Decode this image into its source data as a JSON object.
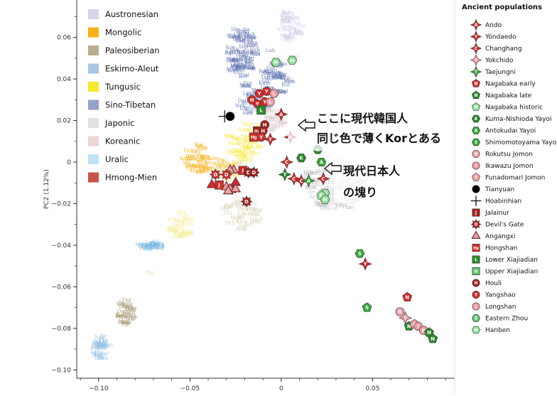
{
  "chart_data": {
    "type": "scatter",
    "title": "",
    "xlabel": "",
    "ylabel": "PC2 (1.12%)",
    "xlim": [
      -0.112,
      0.095
    ],
    "ylim": [
      -0.104,
      0.078
    ],
    "x_ticks": [
      -0.1,
      -0.05,
      0,
      0.05
    ],
    "x_tick_labels": [
      "−0.10",
      "−0.05",
      "0",
      "0.05"
    ],
    "y_ticks": [
      0.06,
      0.04,
      0.02,
      0,
      -0.02,
      -0.04,
      -0.06,
      -0.08,
      -0.1
    ],
    "y_tick_labels": [
      "0.06",
      "0.04",
      "0.02",
      "0",
      "−0.02",
      "−0.04",
      "−0.06",
      "−0.08",
      "−0.10"
    ],
    "grid": false,
    "legend_groups_placement": "top-left",
    "legend_groups": [
      {
        "label": "Austronesian",
        "color": "#d9d4e8"
      },
      {
        "label": "Mongolic",
        "color": "#f5b21a"
      },
      {
        "label": "Paleosiberian",
        "color": "#b8ad8e"
      },
      {
        "label": "Eskimo-Aleut",
        "color": "#a9c6e3"
      },
      {
        "label": "Tungusic",
        "color": "#f6ea2c"
      },
      {
        "label": "Sino-Tibetan",
        "color": "#97a2c9"
      },
      {
        "label": "Japonic",
        "color": "#e3e0e3"
      },
      {
        "label": "Koreanic",
        "color": "#ead6d6"
      },
      {
        "label": "Uralic",
        "color": "#bfe3f4"
      },
      {
        "label": "Hmong-Mien",
        "color": "#c9534a"
      }
    ],
    "legend_ancient_title": "Ancient populations",
    "legend_ancient_placement": "right",
    "legend_ancient": [
      {
        "label": "Ando",
        "letter": "A",
        "shape": "star4",
        "color": "#d42b2b"
      },
      {
        "label": "Yöndaedo",
        "letter": "Y",
        "shape": "star4",
        "color": "#d42b2b"
      },
      {
        "label": "Changhang",
        "letter": "C",
        "shape": "star4",
        "color": "#d42b2b"
      },
      {
        "label": "Yokchido",
        "letter": "Y",
        "shape": "star4",
        "color": "#ef9aa2"
      },
      {
        "label": "Taejungni",
        "letter": "T",
        "shape": "star4",
        "color": "#37a73a"
      },
      {
        "label": "Nagabaka  early",
        "letter": "N",
        "shape": "pentagon",
        "color": "#d42b2b"
      },
      {
        "label": "Nagabaka  late",
        "letter": "N",
        "shape": "pentagon",
        "color": "#2a8a2e"
      },
      {
        "label": "Nagabaka  historic",
        "letter": "N",
        "shape": "pentagon",
        "color": "#8fe39b"
      },
      {
        "label": "Kuma-Nishioda Yayoi",
        "letter": "K",
        "shape": "hexagon",
        "color": "#2a8a2e"
      },
      {
        "label": "Antokudai Yayoi",
        "letter": "A",
        "shape": "hexagon",
        "color": "#37a73a"
      },
      {
        "label": "Shimomotoyama Yayoi",
        "letter": "S",
        "shape": "hexagon",
        "color": "#37a73a"
      },
      {
        "label": "Rokutsu Jomon",
        "letter": "R",
        "shape": "circle",
        "color": "#ef9aa2"
      },
      {
        "label": "Ikawazu Jomon",
        "letter": "I",
        "shape": "circle",
        "color": "#ef9aa2"
      },
      {
        "label": "Funadomari Jomon",
        "letter": "F",
        "shape": "pentagon",
        "color": "#ef9aa2"
      },
      {
        "label": "Tianyuan",
        "letter": "",
        "shape": "dot",
        "color": "#000000"
      },
      {
        "label": "Hoabinhian",
        "letter": "",
        "shape": "plus",
        "color": "#000000"
      },
      {
        "label": "Jalainur",
        "letter": "J",
        "shape": "square",
        "color": "#a81f1f"
      },
      {
        "label": "Devil's Gate",
        "letter": "D",
        "shape": "star8",
        "color": "#a81f1f"
      },
      {
        "label": "Angangxi",
        "letter": "",
        "shape": "triangle",
        "color": "#e6a3a3"
      },
      {
        "label": "Hongshan",
        "letter": "Hg",
        "shape": "square",
        "color": "#d42b2b"
      },
      {
        "label": "Lower Xiajiadian",
        "letter": "L",
        "shape": "square",
        "color": "#2a8a2e"
      },
      {
        "label": "Upper Xiajiadian",
        "letter": "U",
        "shape": "square",
        "color": "#5fc46b"
      },
      {
        "label": "Houli",
        "letter": "H",
        "shape": "circle",
        "color": "#a81f1f"
      },
      {
        "label": "Yangshao",
        "letter": "Y",
        "shape": "circle",
        "color": "#d42b2b"
      },
      {
        "label": "Longshan",
        "letter": "L",
        "shape": "circle",
        "color": "#ef9aa2"
      },
      {
        "label": "Eastern Zhou",
        "letter": "Z",
        "shape": "circle",
        "color": "#5fc46b"
      },
      {
        "label": "Hanben",
        "letter": "H",
        "shape": "hexagon",
        "color": "#8fe39b"
      }
    ],
    "population_labels": [
      {
        "text": "Kdm",
        "x": 0.004,
        "y": 0.071,
        "color": "#c9c3de"
      },
      {
        "text": "Shp",
        "x": -0.025,
        "y": 0.063,
        "color": "#7f8cb9"
      },
      {
        "text": "Lah",
        "x": -0.006,
        "y": 0.053,
        "color": "#7f8cb9"
      },
      {
        "text": "Ami",
        "x": 0.007,
        "y": 0.05,
        "color": "#c9c3de"
      },
      {
        "text": "Kor",
        "x": 0.001,
        "y": 0.018,
        "color": "#d9c5c5"
      },
      {
        "text": "Nvk",
        "x": -0.022,
        "y": -0.033,
        "color": "#c8c0a6"
      },
      {
        "text": "Ykg",
        "x": -0.072,
        "y": -0.054,
        "color": "#e3dcb0"
      },
      {
        "text": "Ite",
        "x": -0.083,
        "y": -0.069,
        "color": "#b8ad8e"
      },
      {
        "text": "Egi",
        "x": -0.102,
        "y": -0.09,
        "color": "#7fa8cf"
      }
    ],
    "clusters": [
      {
        "group": "Austronesian",
        "color": "#cfc9e3",
        "cx": 0.005,
        "cy": 0.065,
        "rx": 0.006,
        "ry": 0.008,
        "n": 30
      },
      {
        "group": "Sino-Tibetan",
        "color": "#5d6fae",
        "cx": -0.022,
        "cy": 0.052,
        "rx": 0.008,
        "ry": 0.012,
        "n": 70
      },
      {
        "group": "Sino-Tibetan",
        "color": "#5d6fae",
        "cx": -0.003,
        "cy": 0.04,
        "rx": 0.008,
        "ry": 0.008,
        "n": 40
      },
      {
        "group": "Sino-Tibetan",
        "color": "#5d6fae",
        "cx": -0.015,
        "cy": 0.03,
        "rx": 0.01,
        "ry": 0.008,
        "n": 30
      },
      {
        "group": "Tungusic",
        "color": "#f6e62c",
        "cx": -0.02,
        "cy": 0.01,
        "rx": 0.01,
        "ry": 0.01,
        "n": 40
      },
      {
        "group": "Mongolic",
        "color": "#f5b21a",
        "cx": -0.045,
        "cy": 0.001,
        "rx": 0.008,
        "ry": 0.007,
        "n": 40
      },
      {
        "group": "Mongolic",
        "color": "#f5c74d",
        "cx": -0.03,
        "cy": -0.004,
        "rx": 0.008,
        "ry": 0.006,
        "n": 25
      },
      {
        "group": "Tungusic",
        "color": "#f3ea8a",
        "cx": -0.055,
        "cy": -0.03,
        "rx": 0.007,
        "ry": 0.007,
        "n": 25
      },
      {
        "group": "Paleosiberian",
        "color": "#d6cfb4",
        "cx": -0.022,
        "cy": -0.025,
        "rx": 0.01,
        "ry": 0.008,
        "n": 30
      },
      {
        "group": "Eskimo-Aleut",
        "color": "#78b7de",
        "cx": -0.071,
        "cy": -0.041,
        "rx": 0.006,
        "ry": 0.002,
        "n": 25
      },
      {
        "group": "Paleosiberian",
        "color": "#a89b76",
        "cx": -0.085,
        "cy": -0.073,
        "rx": 0.004,
        "ry": 0.006,
        "n": 30
      },
      {
        "group": "Eskimo-Aleut",
        "color": "#8ebbe4",
        "cx": -0.099,
        "cy": -0.09,
        "rx": 0.004,
        "ry": 0.006,
        "n": 25
      },
      {
        "group": "Japonic",
        "color": "#c8c5c8",
        "cx": 0.03,
        "cy": -0.012,
        "rx": 0.018,
        "ry": 0.012,
        "n": 110
      },
      {
        "group": "Koreanic",
        "color": "#d9c5c5",
        "cx": -0.005,
        "cy": 0.02,
        "rx": 0.006,
        "ry": 0.006,
        "n": 25
      }
    ],
    "ancient_points": [
      {
        "kind": 1,
        "x": 0.006,
        "y": 0.049,
        "c": "#8fe39b",
        "l": "H",
        "s": "hexagon"
      },
      {
        "kind": 1,
        "x": -0.003,
        "y": 0.048,
        "c": "#8fe39b",
        "l": "H",
        "s": "hexagon"
      },
      {
        "kind": 1,
        "x": -0.028,
        "y": 0.022,
        "c": "#000000",
        "l": "",
        "s": "dot"
      },
      {
        "kind": 1,
        "x": -0.031,
        "y": 0.022,
        "c": "#000000",
        "l": "",
        "s": "plus"
      },
      {
        "kind": 1,
        "x": -0.012,
        "y": 0.033,
        "c": "#d42b2b",
        "l": "Y",
        "s": "circle"
      },
      {
        "kind": 1,
        "x": -0.008,
        "y": 0.034,
        "c": "#d42b2b",
        "l": "Y",
        "s": "circle"
      },
      {
        "kind": 1,
        "x": -0.004,
        "y": 0.033,
        "c": "#ef9aa2",
        "l": "L",
        "s": "circle"
      },
      {
        "kind": 1,
        "x": -0.016,
        "y": 0.03,
        "c": "#d42b2b",
        "l": "H",
        "s": "circle"
      },
      {
        "kind": 1,
        "x": -0.013,
        "y": 0.028,
        "c": "#d42b2b",
        "l": "Y",
        "s": "circle"
      },
      {
        "kind": 1,
        "x": -0.009,
        "y": 0.029,
        "c": "#d42b2b",
        "l": "Y",
        "s": "circle"
      },
      {
        "kind": 1,
        "x": -0.006,
        "y": 0.029,
        "c": "#ef9aa2",
        "l": "L",
        "s": "circle"
      },
      {
        "kind": 1,
        "x": -0.011,
        "y": 0.025,
        "c": "#2a8a2e",
        "l": "L",
        "s": "square"
      },
      {
        "kind": 1,
        "x": 0.0,
        "y": 0.023,
        "c": "#d42b2b",
        "l": "A",
        "s": "star4"
      },
      {
        "kind": 1,
        "x": -0.009,
        "y": 0.018,
        "c": "#a81f1f",
        "l": "H",
        "s": "circle"
      },
      {
        "kind": 1,
        "x": -0.013,
        "y": 0.015,
        "c": "#a81f1f",
        "l": "Hg",
        "s": "square"
      },
      {
        "kind": 1,
        "x": -0.01,
        "y": 0.015,
        "c": "#a81f1f",
        "l": "H",
        "s": "circle"
      },
      {
        "kind": 1,
        "x": -0.015,
        "y": 0.012,
        "c": "#d42b2b",
        "l": "Hg",
        "s": "square"
      },
      {
        "kind": 1,
        "x": -0.011,
        "y": 0.012,
        "c": "#d42b2b",
        "l": "Y",
        "s": "circle"
      },
      {
        "kind": 1,
        "x": -0.006,
        "y": 0.011,
        "c": "#d42b2b",
        "l": "Y",
        "s": "star4"
      },
      {
        "kind": 1,
        "x": 0.005,
        "y": 0.012,
        "c": "#d42b2b",
        "l": "A",
        "s": "star4"
      },
      {
        "kind": 1,
        "x": 0.02,
        "y": 0.006,
        "c": "#2a8a2e",
        "l": "K",
        "s": "hexagon"
      },
      {
        "kind": 1,
        "x": 0.011,
        "y": 0.002,
        "c": "#2a8a2e",
        "l": "K",
        "s": "hexagon"
      },
      {
        "kind": 1,
        "x": 0.003,
        "y": 0.0,
        "c": "#d42b2b",
        "l": "C",
        "s": "star4"
      },
      {
        "kind": 1,
        "x": 0.022,
        "y": 0.0,
        "c": "#37a73a",
        "l": "A",
        "s": "hexagon"
      },
      {
        "kind": 1,
        "x": -0.026,
        "y": -0.004,
        "c": "#e6a3a3",
        "l": "",
        "s": "triangle"
      },
      {
        "kind": 1,
        "x": -0.028,
        "y": -0.004,
        "c": "#e6a3a3",
        "l": "",
        "s": "triangle"
      },
      {
        "kind": 1,
        "x": -0.03,
        "y": -0.006,
        "c": "#d42b2b",
        "l": "D",
        "s": "star8"
      },
      {
        "kind": 1,
        "x": -0.036,
        "y": -0.006,
        "c": "#d42b2b",
        "l": "D",
        "s": "star8"
      },
      {
        "kind": 1,
        "x": -0.021,
        "y": -0.004,
        "c": "#d42b2b",
        "l": "J",
        "s": "square"
      },
      {
        "kind": 1,
        "x": -0.018,
        "y": -0.005,
        "c": "#a81f1f",
        "l": "D",
        "s": "star8"
      },
      {
        "kind": 1,
        "x": -0.015,
        "y": -0.005,
        "c": "#a81f1f",
        "l": "D",
        "s": "star8"
      },
      {
        "kind": 1,
        "x": -0.025,
        "y": -0.01,
        "c": "#d42b2b",
        "l": "",
        "s": "triangle"
      },
      {
        "kind": 1,
        "x": -0.034,
        "y": -0.011,
        "c": "#d42b2b",
        "l": "J",
        "s": "square"
      },
      {
        "kind": 1,
        "x": -0.03,
        "y": -0.012,
        "c": "#e6a3a3",
        "l": "",
        "s": "triangle"
      },
      {
        "kind": 1,
        "x": -0.038,
        "y": -0.011,
        "c": "#d42b2b",
        "l": "",
        "s": "triangle"
      },
      {
        "kind": 1,
        "x": -0.027,
        "y": -0.013,
        "c": "#d42b2b",
        "l": "D",
        "s": "star8"
      },
      {
        "kind": 1,
        "x": -0.028,
        "y": -0.013,
        "c": "#e6a3a3",
        "l": "",
        "s": "triangle"
      },
      {
        "kind": 1,
        "x": -0.025,
        "y": -0.013,
        "c": "#e6a3a3",
        "l": "",
        "s": "triangle"
      },
      {
        "kind": 1,
        "x": -0.029,
        "y": -0.014,
        "c": "#e6a3a3",
        "l": "",
        "s": "triangle"
      },
      {
        "kind": 1,
        "x": -0.019,
        "y": -0.019,
        "c": "#a81f1f",
        "l": "D",
        "s": "star8"
      },
      {
        "kind": 1,
        "x": 0.002,
        "y": -0.006,
        "c": "#2a8a2e",
        "l": "T",
        "s": "star4"
      },
      {
        "kind": 1,
        "x": 0.007,
        "y": -0.008,
        "c": "#d42b2b",
        "l": "C",
        "s": "star4"
      },
      {
        "kind": 1,
        "x": 0.011,
        "y": -0.009,
        "c": "#d42b2b",
        "l": "C",
        "s": "star4"
      },
      {
        "kind": 1,
        "x": 0.015,
        "y": -0.009,
        "c": "#37a73a",
        "l": "A",
        "s": "star4"
      },
      {
        "kind": 1,
        "x": 0.023,
        "y": -0.008,
        "c": "#d42b2b",
        "l": "C",
        "s": "star4"
      },
      {
        "kind": 1,
        "x": 0.024,
        "y": -0.015,
        "c": "#8fe39b",
        "l": "H",
        "s": "hexagon"
      },
      {
        "kind": 1,
        "x": 0.022,
        "y": -0.016,
        "c": "#8fe39b",
        "l": "N",
        "s": "pentagon"
      },
      {
        "kind": 1,
        "x": 0.024,
        "y": -0.018,
        "c": "#8fe39b",
        "l": "H",
        "s": "hexagon"
      },
      {
        "kind": 1,
        "x": 0.043,
        "y": -0.044,
        "c": "#37a73a",
        "l": "S",
        "s": "hexagon"
      },
      {
        "kind": 1,
        "x": 0.046,
        "y": -0.049,
        "c": "#d42b2b",
        "l": "Y",
        "s": "star4"
      },
      {
        "kind": 1,
        "x": 0.047,
        "y": -0.07,
        "c": "#37a73a",
        "l": "S",
        "s": "pentagon"
      },
      {
        "kind": 1,
        "x": 0.069,
        "y": -0.065,
        "c": "#d42b2b",
        "l": "N",
        "s": "pentagon"
      },
      {
        "kind": 1,
        "x": 0.065,
        "y": -0.072,
        "c": "#ef9aa2",
        "l": "R",
        "s": "circle"
      },
      {
        "kind": 1,
        "x": 0.068,
        "y": -0.075,
        "c": "#ef9aa2",
        "l": "Y",
        "s": "star4"
      },
      {
        "kind": 1,
        "x": 0.07,
        "y": -0.079,
        "c": "#2a8a2e",
        "l": "N",
        "s": "pentagon"
      },
      {
        "kind": 1,
        "x": 0.073,
        "y": -0.078,
        "c": "#ef9aa2",
        "l": "F",
        "s": "pentagon"
      },
      {
        "kind": 1,
        "x": 0.075,
        "y": -0.079,
        "c": "#ef9aa2",
        "l": "I",
        "s": "circle"
      },
      {
        "kind": 1,
        "x": 0.078,
        "y": -0.081,
        "c": "#ef9aa2",
        "l": "R",
        "s": "circle"
      },
      {
        "kind": 1,
        "x": 0.081,
        "y": -0.082,
        "c": "#2a8a2e",
        "l": "N",
        "s": "pentagon"
      },
      {
        "kind": 1,
        "x": 0.083,
        "y": -0.085,
        "c": "#2a8a2e",
        "l": "N",
        "s": "pentagon"
      }
    ]
  },
  "annotations": {
    "korea_note_line1": "ここに現代韓国人",
    "korea_note_line2": "同じ色で薄くKorとある",
    "japan_note_line1": "現代日本人",
    "japan_note_line2": "の塊り",
    "arrow_color": "#111111"
  }
}
